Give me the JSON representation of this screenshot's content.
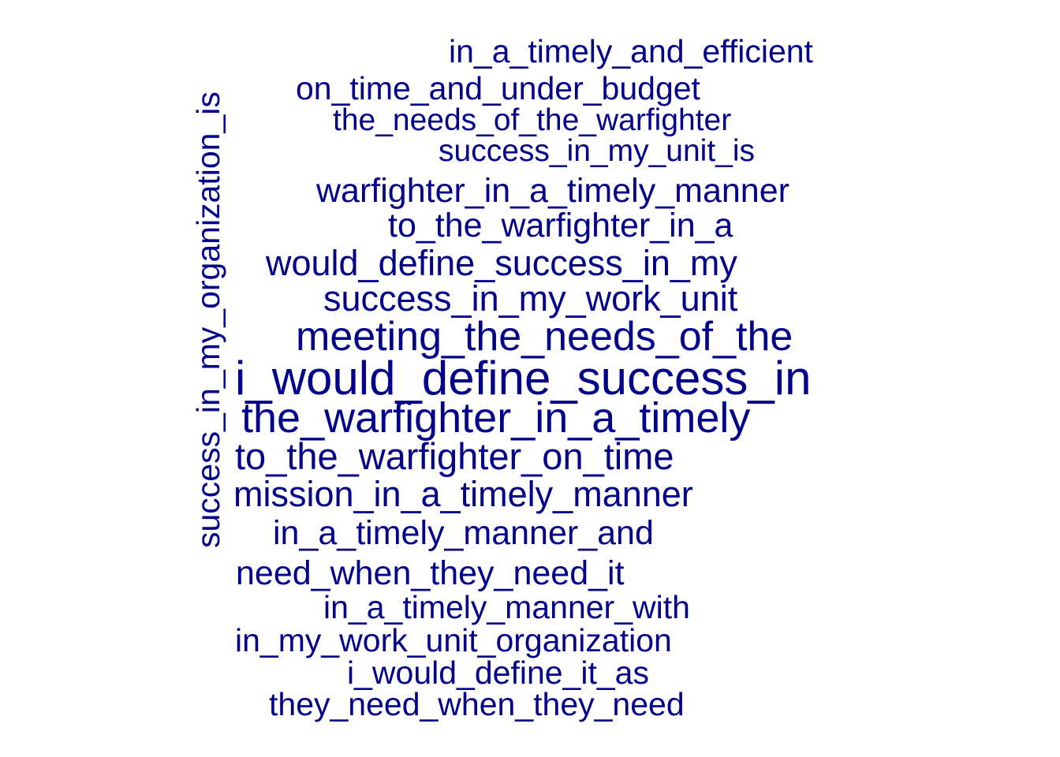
{
  "word_cloud": {
    "color": "#00008B",
    "words": [
      {
        "id": "w1",
        "text": "in_a_timely_and_efficient",
        "orientation": "horizontal"
      },
      {
        "id": "w2",
        "text": "on_time_and_under_budget",
        "orientation": "horizontal"
      },
      {
        "id": "w3",
        "text": "the_needs_of_the_warfighter",
        "orientation": "horizontal"
      },
      {
        "id": "w4",
        "text": "success_in_my_unit_is",
        "orientation": "horizontal"
      },
      {
        "id": "w5",
        "text": "warfighter_in_a_timely_manner",
        "orientation": "horizontal"
      },
      {
        "id": "w6",
        "text": "to_the_warfighter_in_a",
        "orientation": "horizontal"
      },
      {
        "id": "w7",
        "text": "would_define_success_in_my",
        "orientation": "horizontal"
      },
      {
        "id": "w8",
        "text": "success_in_my_work_unit",
        "orientation": "horizontal"
      },
      {
        "id": "w9",
        "text": "meeting_the_needs_of_the",
        "orientation": "horizontal"
      },
      {
        "id": "w10",
        "text": "i_would_define_success_in",
        "orientation": "horizontal"
      },
      {
        "id": "w11",
        "text": "the_warfighter_in_a_timely",
        "orientation": "horizontal"
      },
      {
        "id": "w12",
        "text": "to_the_warfighter_on_time",
        "orientation": "horizontal"
      },
      {
        "id": "w13",
        "text": "mission_in_a_timely_manner",
        "orientation": "horizontal"
      },
      {
        "id": "w14",
        "text": "in_a_timely_manner_and",
        "orientation": "horizontal"
      },
      {
        "id": "w15",
        "text": "need_when_they_need_it",
        "orientation": "horizontal"
      },
      {
        "id": "w16",
        "text": "in_a_timely_manner_with",
        "orientation": "horizontal"
      },
      {
        "id": "w17",
        "text": "in_my_work_unit_organization",
        "orientation": "horizontal"
      },
      {
        "id": "w18",
        "text": "i_would_define_it_as",
        "orientation": "horizontal"
      },
      {
        "id": "w19",
        "text": "they_need_when_they_need",
        "orientation": "horizontal"
      },
      {
        "id": "w20",
        "text": "success_in_my_organization_is",
        "orientation": "vertical"
      }
    ]
  }
}
